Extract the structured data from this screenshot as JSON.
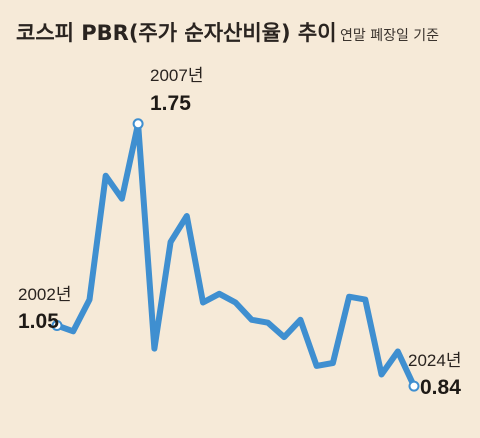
{
  "title": "코스피 PBR(주가 순자산비율) 추이",
  "subtitle": "연말 폐장일 기준",
  "colors": {
    "background": "#f6ead8",
    "line": "#3f8fd0",
    "text": "#2a2420"
  },
  "annotations": [
    {
      "year_label": "2002년",
      "value_label": "1.05"
    },
    {
      "year_label": "2007년",
      "value_label": "1.75"
    },
    {
      "year_label": "2024년",
      "value_label": "0.84"
    }
  ],
  "chart_data": {
    "type": "line",
    "title": "코스피 PBR(주가 순자산비율) 추이",
    "subtitle": "연말 폐장일 기준",
    "xlabel": "",
    "ylabel": "",
    "grid": false,
    "legend": "none",
    "x": [
      2002,
      2003,
      2004,
      2005,
      2006,
      2007,
      2008,
      2009,
      2010,
      2011,
      2012,
      2013,
      2014,
      2015,
      2016,
      2017,
      2018,
      2019,
      2020,
      2021,
      2022,
      2023,
      2024
    ],
    "values": [
      1.05,
      1.03,
      1.14,
      1.57,
      1.49,
      1.75,
      0.97,
      1.34,
      1.43,
      1.13,
      1.16,
      1.13,
      1.07,
      1.06,
      1.01,
      1.07,
      0.91,
      0.92,
      1.15,
      1.14,
      0.88,
      0.96,
      0.84
    ],
    "ylim": [
      0.75,
      1.85
    ],
    "markers": [
      {
        "x": 2002,
        "y": 1.05
      },
      {
        "x": 2007,
        "y": 1.75
      },
      {
        "x": 2024,
        "y": 0.84
      }
    ]
  }
}
